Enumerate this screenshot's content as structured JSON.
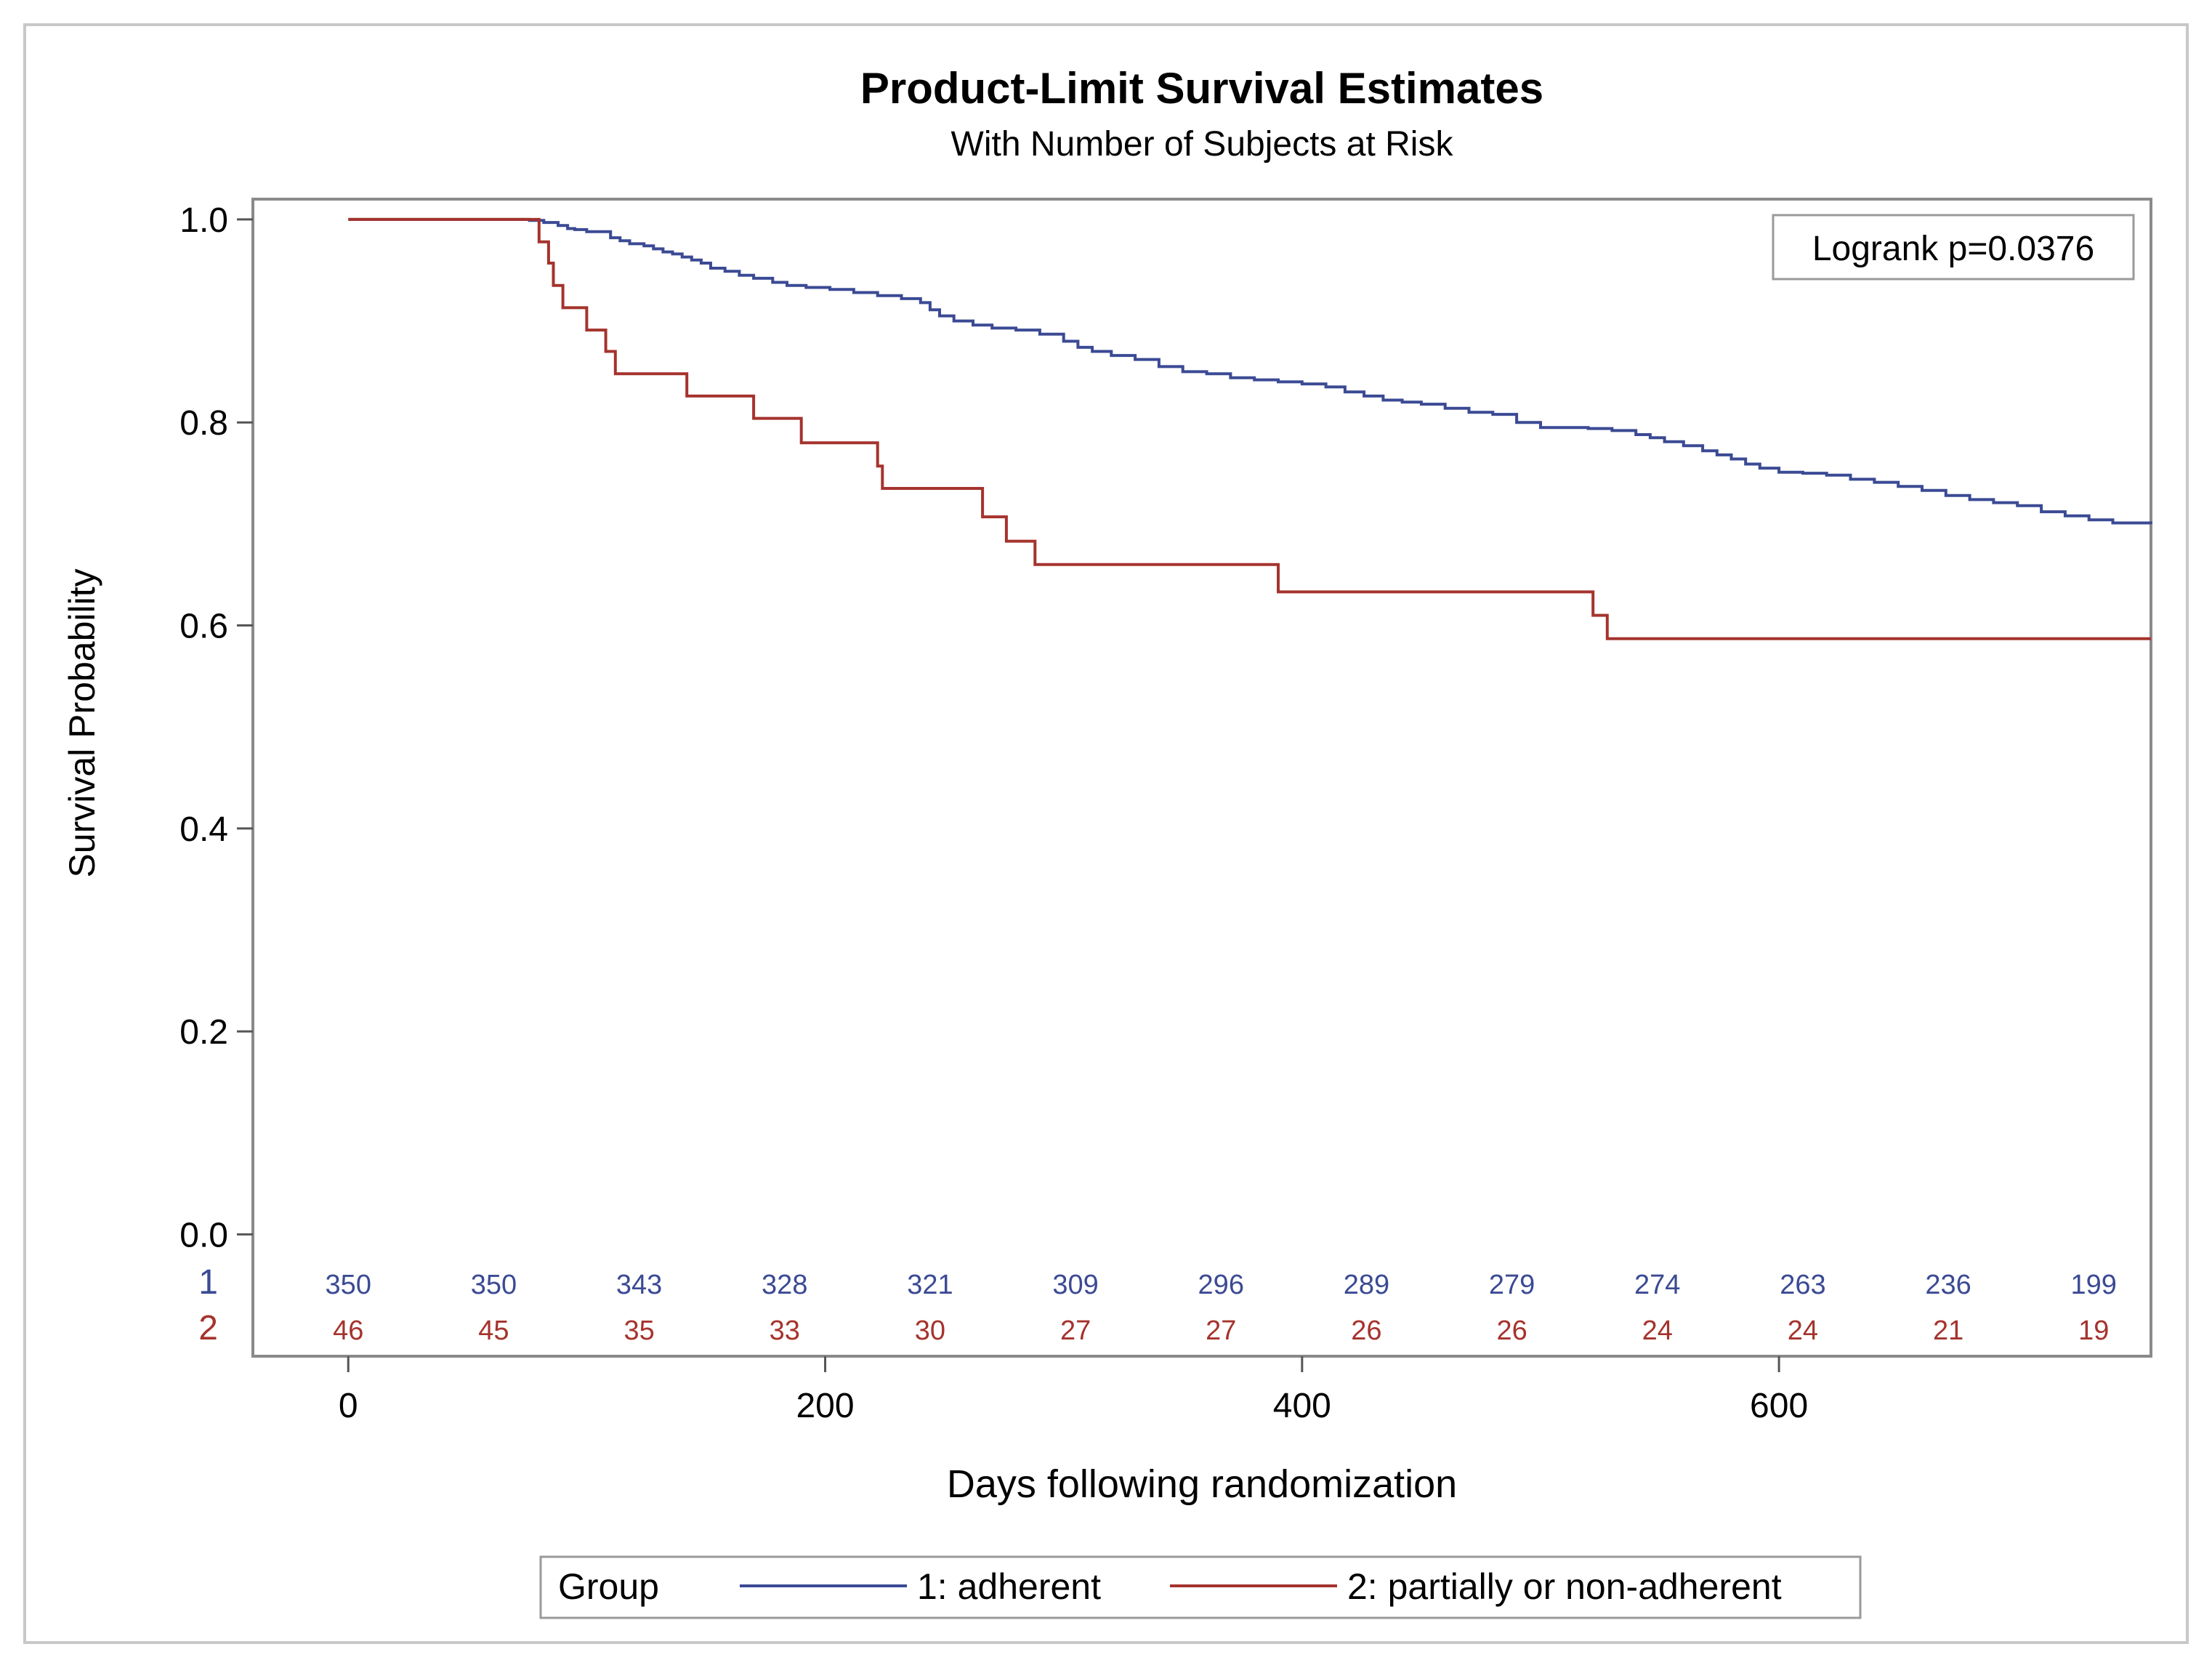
{
  "chart_data": {
    "type": "line",
    "subtype": "kaplan-meier step",
    "title": "Product-Limit Survival Estimates",
    "subtitle": "With Number of Subjects at Risk",
    "xlabel": "Days following randomization",
    "ylabel": "Survival Probability",
    "xlim": [
      -40,
      756
    ],
    "ylim": [
      -0.12,
      1.02
    ],
    "x_ticks": [
      0,
      200,
      400,
      600
    ],
    "x_tick_labels": [
      "0",
      "200",
      "400",
      "600"
    ],
    "y_ticks": [
      0.0,
      0.2,
      0.4,
      0.6,
      0.8,
      1.0
    ],
    "y_tick_labels": [
      "0.0",
      "0.2",
      "0.4",
      "0.6",
      "0.8",
      "1.0"
    ],
    "annotation": "Logrank p=0.0376",
    "legend_title": "Group",
    "series": [
      {
        "name": "1: adherent",
        "risk_label": "1",
        "color": "#3B4A94",
        "x": [
          0,
          70,
          76,
          82,
          88,
          92,
          95,
          100,
          110,
          114,
          118,
          124,
          128,
          132,
          136,
          140,
          144,
          148,
          152,
          158,
          164,
          170,
          178,
          184,
          192,
          202,
          212,
          222,
          232,
          240,
          244,
          248,
          254,
          262,
          270,
          280,
          290,
          300,
          306,
          312,
          320,
          330,
          340,
          350,
          360,
          370,
          380,
          390,
          400,
          410,
          418,
          426,
          434,
          442,
          450,
          460,
          470,
          480,
          490,
          500,
          510,
          520,
          530,
          540,
          546,
          552,
          560,
          568,
          574,
          580,
          586,
          592,
          600,
          610,
          620,
          630,
          640,
          650,
          660,
          670,
          680,
          690,
          700,
          710,
          720,
          730,
          740,
          756
        ],
        "y": [
          1.0,
          1.0,
          0.999,
          0.997,
          0.994,
          0.991,
          0.99,
          0.988,
          0.982,
          0.979,
          0.976,
          0.974,
          0.971,
          0.968,
          0.966,
          0.963,
          0.96,
          0.957,
          0.952,
          0.949,
          0.945,
          0.942,
          0.938,
          0.935,
          0.933,
          0.931,
          0.928,
          0.925,
          0.922,
          0.918,
          0.911,
          0.905,
          0.9,
          0.896,
          0.893,
          0.891,
          0.887,
          0.88,
          0.874,
          0.87,
          0.866,
          0.862,
          0.855,
          0.85,
          0.848,
          0.844,
          0.842,
          0.84,
          0.838,
          0.835,
          0.83,
          0.826,
          0.822,
          0.82,
          0.818,
          0.814,
          0.81,
          0.808,
          0.8,
          0.795,
          0.795,
          0.794,
          0.792,
          0.788,
          0.785,
          0.781,
          0.777,
          0.772,
          0.768,
          0.764,
          0.759,
          0.755,
          0.751,
          0.75,
          0.748,
          0.744,
          0.741,
          0.737,
          0.733,
          0.728,
          0.724,
          0.721,
          0.718,
          0.712,
          0.708,
          0.704,
          0.701,
          0.7
        ]
      },
      {
        "name": "2: partially or non-adherent",
        "risk_label": "2",
        "color": "#A5332D",
        "x": [
          0,
          78,
          80,
          84,
          86,
          90,
          100,
          108,
          112,
          142,
          170,
          190,
          222,
          224,
          266,
          276,
          288,
          390,
          522,
          528,
          756
        ],
        "y": [
          1.0,
          1.0,
          0.978,
          0.957,
          0.935,
          0.913,
          0.891,
          0.87,
          0.848,
          0.826,
          0.804,
          0.78,
          0.757,
          0.735,
          0.707,
          0.683,
          0.66,
          0.633,
          0.61,
          0.587,
          0.587
        ]
      }
    ],
    "risk_table": {
      "times": [
        0,
        61,
        122,
        183,
        244,
        305,
        366,
        427,
        488,
        549,
        610,
        671,
        732
      ],
      "rows": [
        {
          "label": "1",
          "values": [
            "350",
            "350",
            "343",
            "328",
            "321",
            "309",
            "296",
            "289",
            "279",
            "274",
            "263",
            "236",
            "199"
          ]
        },
        {
          "label": "2",
          "values": [
            "46",
            "45",
            "35",
            "33",
            "30",
            "27",
            "27",
            "26",
            "26",
            "24",
            "24",
            "21",
            "19"
          ]
        }
      ]
    }
  }
}
